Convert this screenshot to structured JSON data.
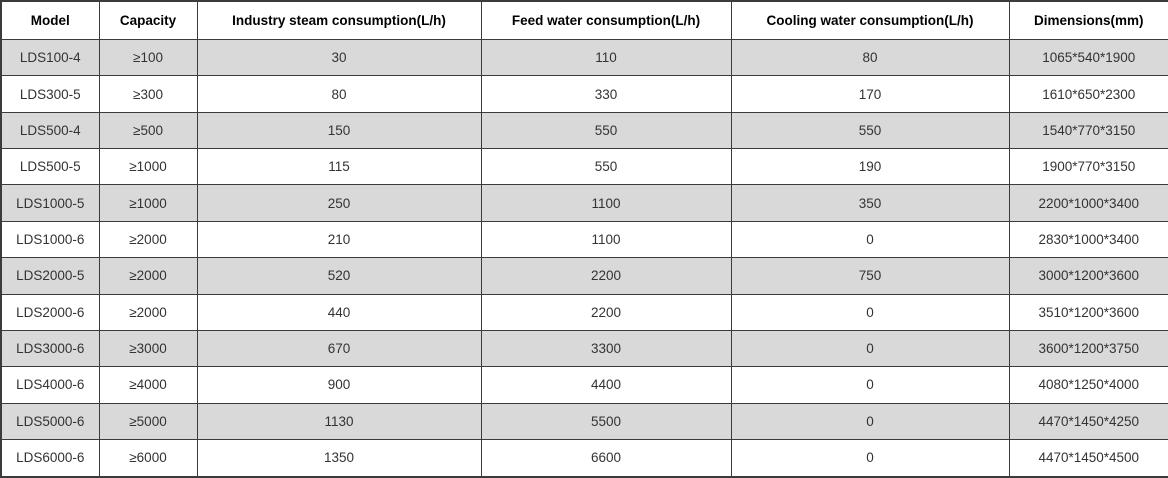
{
  "chart_data": {
    "type": "table",
    "title": "",
    "columns": [
      {
        "key": "model",
        "label": "Model"
      },
      {
        "key": "capacity",
        "label": "Capacity"
      },
      {
        "key": "steam",
        "label": "Industry steam consumption(L/h)"
      },
      {
        "key": "feed",
        "label": "Feed water consumption(L/h)"
      },
      {
        "key": "cooling",
        "label": "Cooling water consumption(L/h)"
      },
      {
        "key": "dims",
        "label": "Dimensions(mm)"
      }
    ],
    "rows": [
      [
        "LDS100-4",
        "≥100",
        "30",
        "110",
        "80",
        "1065*540*1900"
      ],
      [
        "LDS300-5",
        "≥300",
        "80",
        "330",
        "170",
        "1610*650*2300"
      ],
      [
        "LDS500-4",
        "≥500",
        "150",
        "550",
        "550",
        "1540*770*3150"
      ],
      [
        "LDS500-5",
        "≥1000",
        "115",
        "550",
        "190",
        "1900*770*3150"
      ],
      [
        "LDS1000-5",
        "≥1000",
        "250",
        "1100",
        "350",
        "2200*1000*3400"
      ],
      [
        "LDS1000-6",
        "≥2000",
        "210",
        "1100",
        "0",
        "2830*1000*3400"
      ],
      [
        "LDS2000-5",
        "≥2000",
        "520",
        "2200",
        "750",
        "3000*1200*3600"
      ],
      [
        "LDS2000-6",
        "≥2000",
        "440",
        "2200",
        "0",
        "3510*1200*3600"
      ],
      [
        "LDS3000-6",
        "≥3000",
        "670",
        "3300",
        "0",
        "3600*1200*3750"
      ],
      [
        "LDS4000-6",
        "≥4000",
        "900",
        "4400",
        "0",
        "4080*1250*4000"
      ],
      [
        "LDS5000-6",
        "≥5000",
        "1130",
        "5500",
        "0",
        "4470*1450*4250"
      ],
      [
        "LDS6000-6",
        "≥6000",
        "1350",
        "6600",
        "0",
        "4470*1450*4500"
      ]
    ]
  },
  "colors": {
    "row_stripe": "#d9d9d9",
    "row_plain": "#ffffff",
    "border": "#3b3b3b",
    "header_text": "#000000",
    "cell_text": "#333333"
  }
}
